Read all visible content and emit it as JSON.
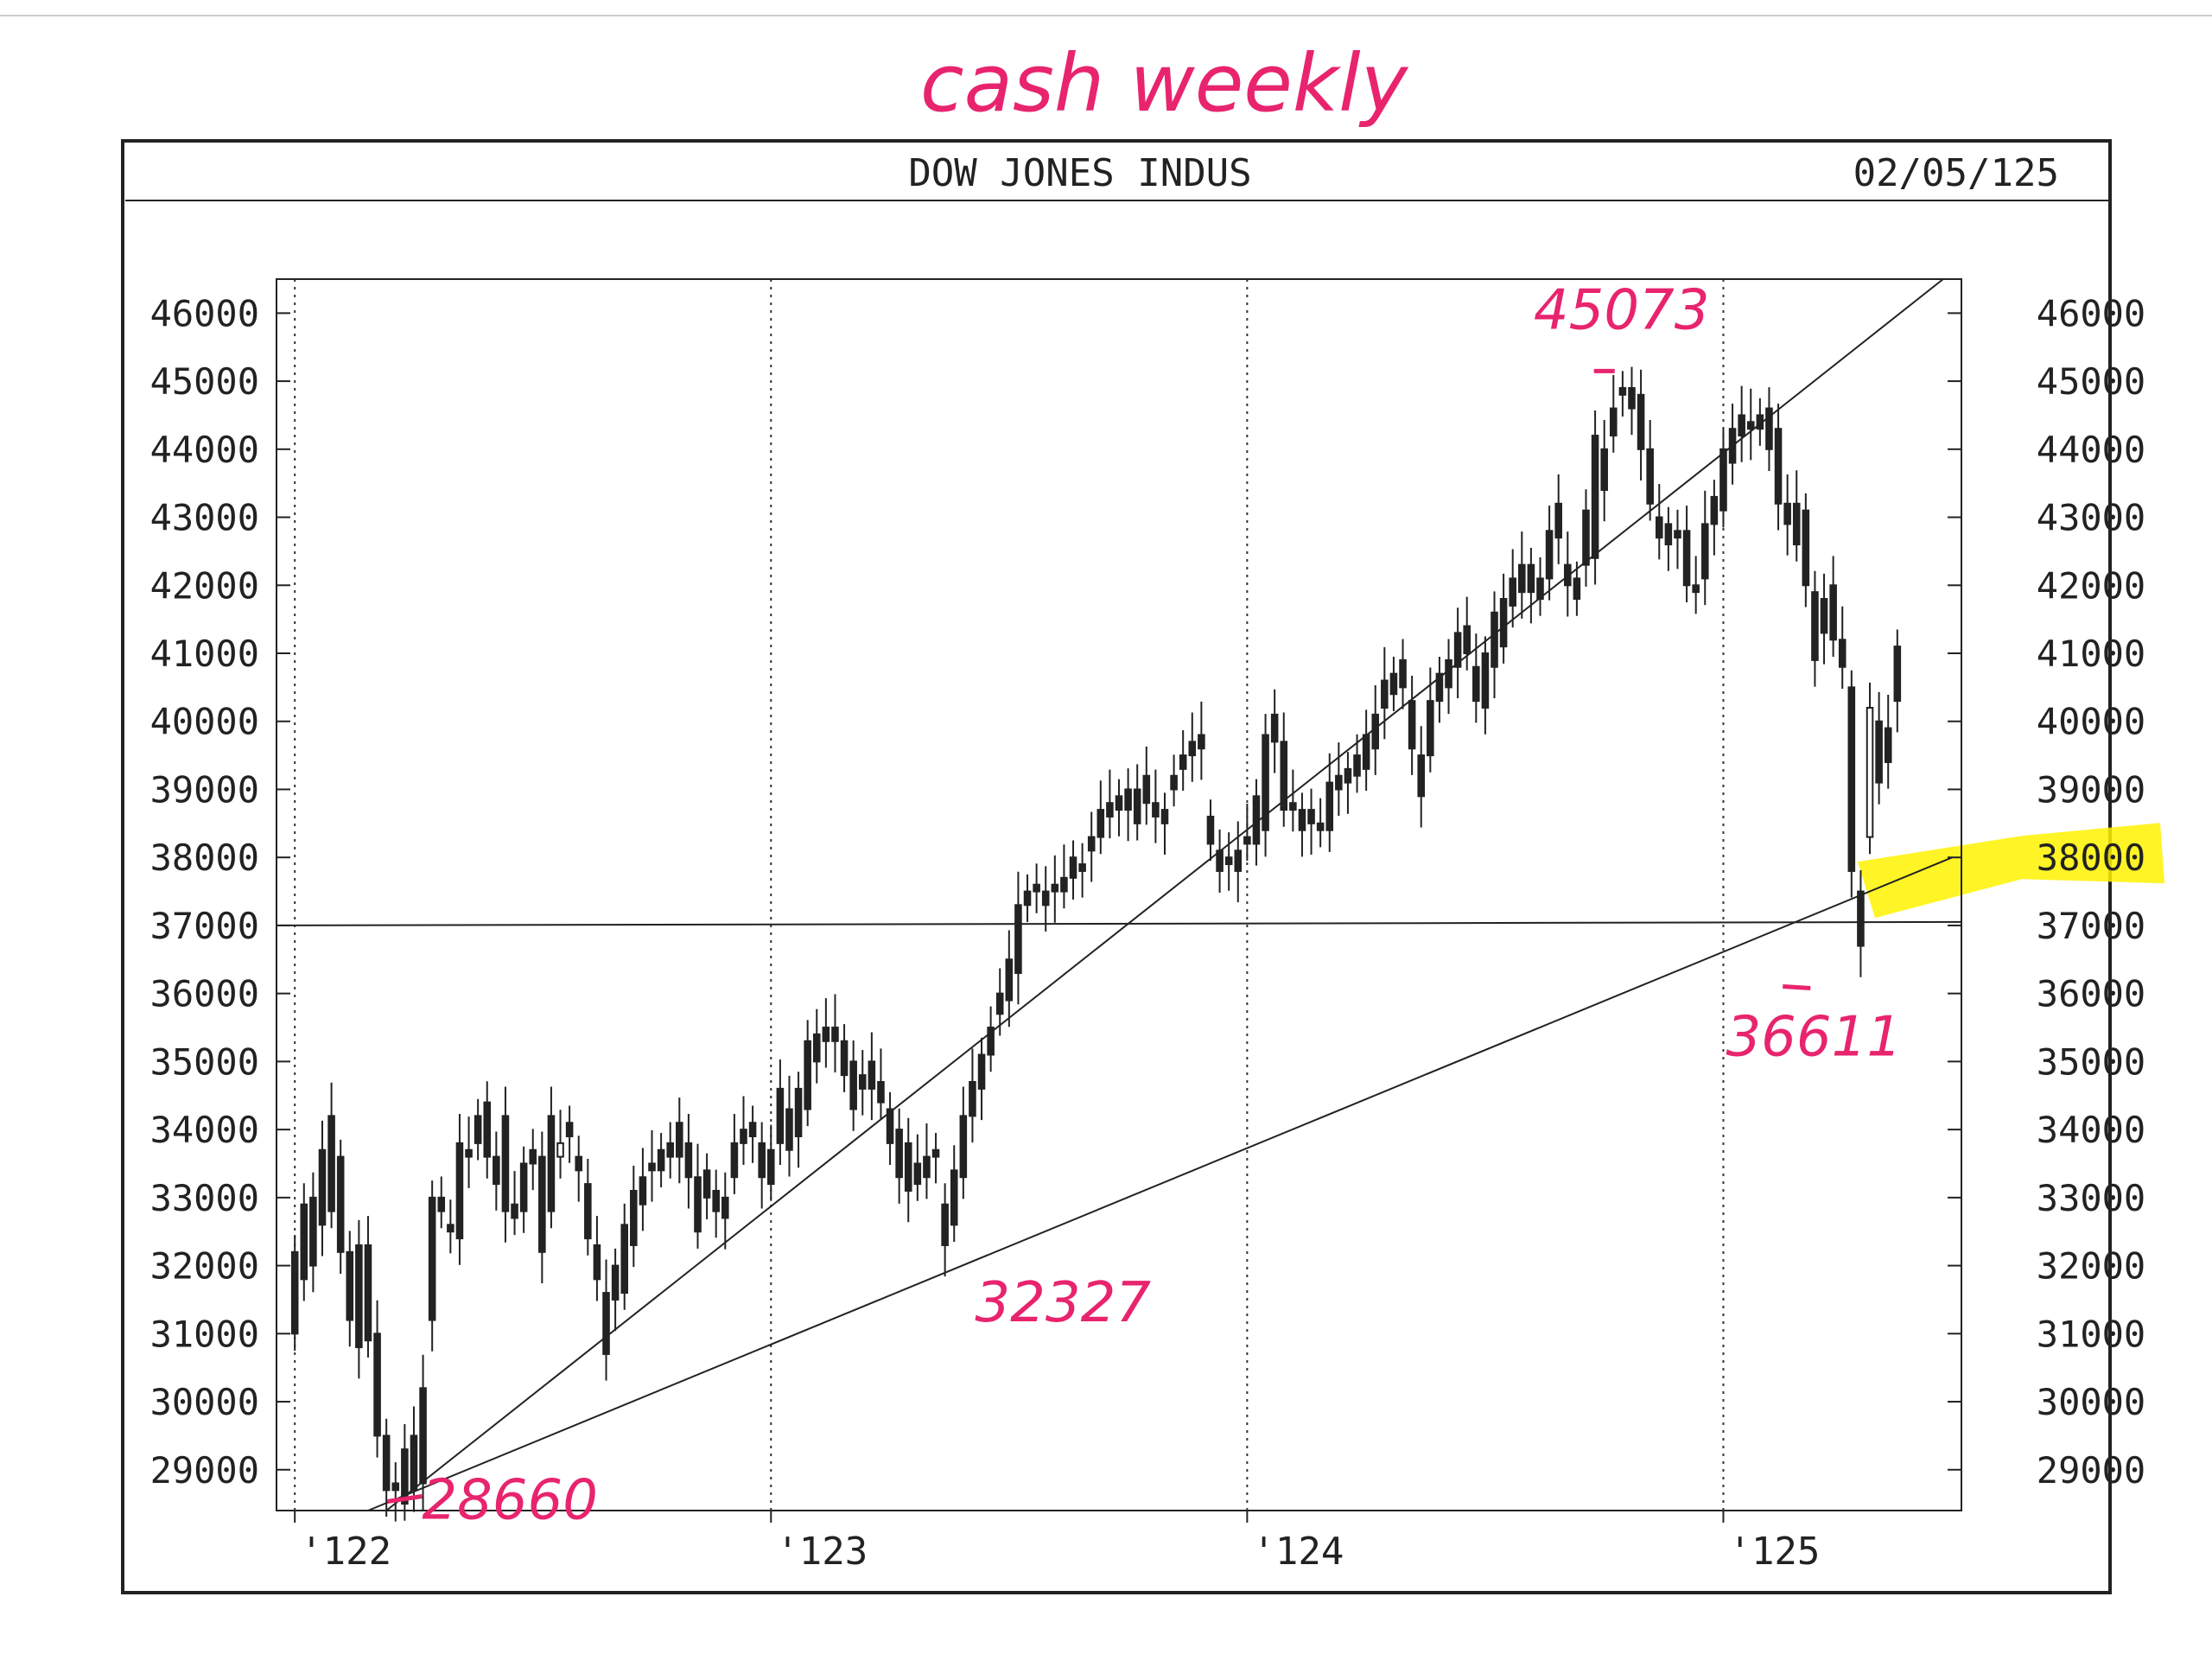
{
  "chart_data": {
    "type": "candlestick",
    "title": "DOW JONES INDUS",
    "date_label": "02/05/125",
    "handwritten_title": "cash weekly",
    "y_ticks": [
      46000,
      45000,
      44000,
      43000,
      42000,
      41000,
      40000,
      39000,
      38000,
      37000,
      36000,
      35000,
      34000,
      33000,
      32000,
      31000,
      30000,
      29000
    ],
    "ylim": [
      28400,
      46500
    ],
    "x_ticks": [
      {
        "label": "'122",
        "week": 0
      },
      {
        "label": "'123",
        "week": 52
      },
      {
        "label": "'124",
        "week": 104
      },
      {
        "label": "'125",
        "week": 156
      }
    ],
    "xlim": [
      -2,
      182
    ],
    "grid": "vertical dotted lines at year starts",
    "horizontal_line": 37000,
    "trendlines": [
      {
        "from": {
          "week": 10,
          "value": 28400
        },
        "to": {
          "week": 180,
          "value": 46500
        }
      },
      {
        "from": {
          "week": 8,
          "value": 28400
        },
        "to": {
          "week": 181,
          "value": 38000
        }
      }
    ],
    "annotations": [
      {
        "text": "45073",
        "week": 143,
        "value": 45073,
        "position": "above"
      },
      {
        "text": "28660",
        "week": 12,
        "value": 28660,
        "position": "right"
      },
      {
        "text": "32327",
        "week": 82,
        "value": 32327,
        "position": "below"
      },
      {
        "text": "36611",
        "week": 164,
        "value": 36611,
        "position": "below"
      }
    ],
    "highlight": {
      "label": "38000",
      "color": "#fff200"
    },
    "candles": [
      [
        0,
        32200,
        31000
      ],
      [
        1,
        32900,
        31800
      ],
      [
        2,
        33000,
        32000
      ],
      [
        3,
        33700,
        32600
      ],
      [
        4,
        34200,
        32800
      ],
      [
        5,
        33600,
        32200
      ],
      [
        6,
        32200,
        31200
      ],
      [
        7,
        32300,
        30800
      ],
      [
        8,
        32300,
        30900
      ],
      [
        9,
        31000,
        29500
      ],
      [
        10,
        29500,
        28700
      ],
      [
        11,
        28800,
        28700
      ],
      [
        12,
        29300,
        28500
      ],
      [
        13,
        29500,
        28700
      ],
      [
        14,
        30200,
        28800
      ],
      [
        15,
        33000,
        31200
      ],
      [
        16,
        33000,
        32800
      ],
      [
        17,
        32600,
        32500
      ],
      [
        18,
        33800,
        32400
      ],
      [
        19,
        33700,
        33600
      ],
      [
        20,
        34200,
        33800
      ],
      [
        21,
        34400,
        33600
      ],
      [
        22,
        33600,
        33200
      ],
      [
        23,
        34200,
        32800
      ],
      [
        24,
        32900,
        32700
      ],
      [
        25,
        33500,
        32800
      ],
      [
        26,
        33700,
        33500
      ],
      [
        27,
        33600,
        32200
      ],
      [
        28,
        34200,
        32800
      ],
      [
        29,
        33600,
        33800
      ],
      [
        30,
        34100,
        33900
      ],
      [
        31,
        33600,
        33400
      ],
      [
        32,
        33200,
        32400
      ],
      [
        33,
        32300,
        31800
      ],
      [
        34,
        31600,
        30700
      ],
      [
        35,
        32000,
        31500
      ],
      [
        36,
        32600,
        31600
      ],
      [
        37,
        33100,
        32300
      ],
      [
        38,
        33300,
        32900
      ],
      [
        39,
        33500,
        33400
      ],
      [
        40,
        33700,
        33400
      ],
      [
        41,
        33800,
        33600
      ],
      [
        42,
        34100,
        33600
      ],
      [
        43,
        33800,
        33300
      ],
      [
        44,
        33300,
        32500
      ],
      [
        45,
        33400,
        33000
      ],
      [
        46,
        33100,
        32800
      ],
      [
        47,
        33000,
        32700
      ],
      [
        48,
        33800,
        33300
      ],
      [
        49,
        34000,
        33800
      ],
      [
        50,
        34100,
        33900
      ],
      [
        51,
        33800,
        33300
      ],
      [
        52,
        33700,
        33200
      ],
      [
        53,
        34600,
        33800
      ],
      [
        54,
        34300,
        33700
      ],
      [
        55,
        34600,
        33900
      ],
      [
        56,
        35300,
        34300
      ],
      [
        57,
        35400,
        35000
      ],
      [
        58,
        35500,
        35300
      ],
      [
        59,
        35500,
        35300
      ],
      [
        60,
        35300,
        34800
      ],
      [
        61,
        35000,
        34300
      ],
      [
        62,
        34800,
        34600
      ],
      [
        63,
        35000,
        34600
      ],
      [
        64,
        34700,
        34400
      ],
      [
        65,
        34300,
        33800
      ],
      [
        66,
        34000,
        33300
      ],
      [
        67,
        33800,
        33100
      ],
      [
        68,
        33500,
        33200
      ],
      [
        69,
        33600,
        33300
      ],
      [
        70,
        33700,
        33600
      ],
      [
        71,
        32900,
        32300
      ],
      [
        72,
        33400,
        32600
      ],
      [
        73,
        34200,
        33300
      ],
      [
        74,
        34700,
        34200
      ],
      [
        75,
        35100,
        34600
      ],
      [
        76,
        35500,
        35100
      ],
      [
        77,
        36000,
        35700
      ],
      [
        78,
        36500,
        35900
      ],
      [
        79,
        37300,
        36300
      ],
      [
        80,
        37500,
        37300
      ],
      [
        81,
        37600,
        37500
      ],
      [
        82,
        37500,
        37300
      ],
      [
        83,
        37600,
        37500
      ],
      [
        84,
        37700,
        37500
      ],
      [
        85,
        38000,
        37700
      ],
      [
        86,
        37900,
        37800
      ],
      [
        87,
        38300,
        38100
      ],
      [
        88,
        38700,
        38300
      ],
      [
        89,
        38800,
        38600
      ],
      [
        90,
        38900,
        38700
      ],
      [
        91,
        39000,
        38700
      ],
      [
        92,
        39000,
        38500
      ],
      [
        93,
        39200,
        38800
      ],
      [
        94,
        38800,
        38600
      ],
      [
        95,
        38700,
        38500
      ],
      [
        96,
        39200,
        39000
      ],
      [
        97,
        39500,
        39300
      ],
      [
        98,
        39700,
        39500
      ],
      [
        99,
        39800,
        39600
      ],
      [
        100,
        38600,
        38200
      ],
      [
        101,
        38100,
        37800
      ],
      [
        102,
        38000,
        37900
      ],
      [
        103,
        38100,
        37800
      ],
      [
        104,
        38300,
        38200
      ],
      [
        105,
        38900,
        38200
      ],
      [
        106,
        39800,
        38400
      ],
      [
        107,
        40100,
        39700
      ],
      [
        108,
        39700,
        38700
      ],
      [
        109,
        38800,
        38700
      ],
      [
        110,
        38700,
        38400
      ],
      [
        111,
        38700,
        38500
      ],
      [
        112,
        38500,
        38400
      ],
      [
        113,
        39100,
        38400
      ],
      [
        114,
        39200,
        39000
      ],
      [
        115,
        39300,
        39100
      ],
      [
        116,
        39500,
        39200
      ],
      [
        117,
        39800,
        39300
      ],
      [
        118,
        40100,
        39600
      ],
      [
        119,
        40600,
        40200
      ],
      [
        120,
        40700,
        40400
      ],
      [
        121,
        40900,
        40500
      ],
      [
        122,
        40300,
        39600
      ],
      [
        123,
        39500,
        38900
      ],
      [
        124,
        40300,
        39500
      ],
      [
        125,
        40700,
        40300
      ],
      [
        126,
        40900,
        40500
      ],
      [
        127,
        41300,
        40800
      ],
      [
        128,
        41400,
        41000
      ],
      [
        129,
        40800,
        40300
      ],
      [
        130,
        41000,
        40200
      ],
      [
        131,
        41600,
        40800
      ],
      [
        132,
        41800,
        41100
      ],
      [
        133,
        42100,
        41700
      ],
      [
        134,
        42300,
        41900
      ],
      [
        135,
        42300,
        41900
      ],
      [
        136,
        42100,
        41800
      ],
      [
        137,
        42800,
        42100
      ],
      [
        138,
        43200,
        42700
      ],
      [
        139,
        42300,
        42000
      ],
      [
        140,
        42100,
        41800
      ],
      [
        141,
        43100,
        42300
      ],
      [
        142,
        44200,
        42400
      ],
      [
        143,
        44000,
        43400
      ],
      [
        144,
        44600,
        44200
      ],
      [
        145,
        44900,
        44800
      ],
      [
        146,
        44900,
        44600
      ],
      [
        147,
        44800,
        44000
      ],
      [
        148,
        44000,
        43200
      ],
      [
        149,
        43000,
        42700
      ],
      [
        150,
        42900,
        42600
      ],
      [
        151,
        42800,
        42700
      ],
      [
        152,
        42800,
        42000
      ],
      [
        153,
        42000,
        41900
      ],
      [
        154,
        42900,
        42100
      ],
      [
        155,
        43300,
        42900
      ],
      [
        156,
        44000,
        43100
      ],
      [
        157,
        44300,
        43800
      ],
      [
        158,
        44500,
        44200
      ],
      [
        159,
        44400,
        44300
      ],
      [
        160,
        44500,
        44300
      ],
      [
        161,
        44600,
        44000
      ],
      [
        162,
        44300,
        43200
      ],
      [
        163,
        43200,
        42900
      ],
      [
        164,
        43200,
        42600
      ],
      [
        165,
        43100,
        42000
      ],
      [
        166,
        41900,
        40900
      ],
      [
        167,
        41800,
        41300
      ],
      [
        168,
        42000,
        41200
      ],
      [
        169,
        41200,
        40800
      ],
      [
        170,
        40500,
        37800
      ],
      [
        171,
        37500,
        36700
      ],
      [
        172,
        38300,
        40200
      ],
      [
        173,
        40000,
        39100
      ],
      [
        174,
        39900,
        39400
      ],
      [
        175,
        41100,
        40300
      ]
    ]
  }
}
